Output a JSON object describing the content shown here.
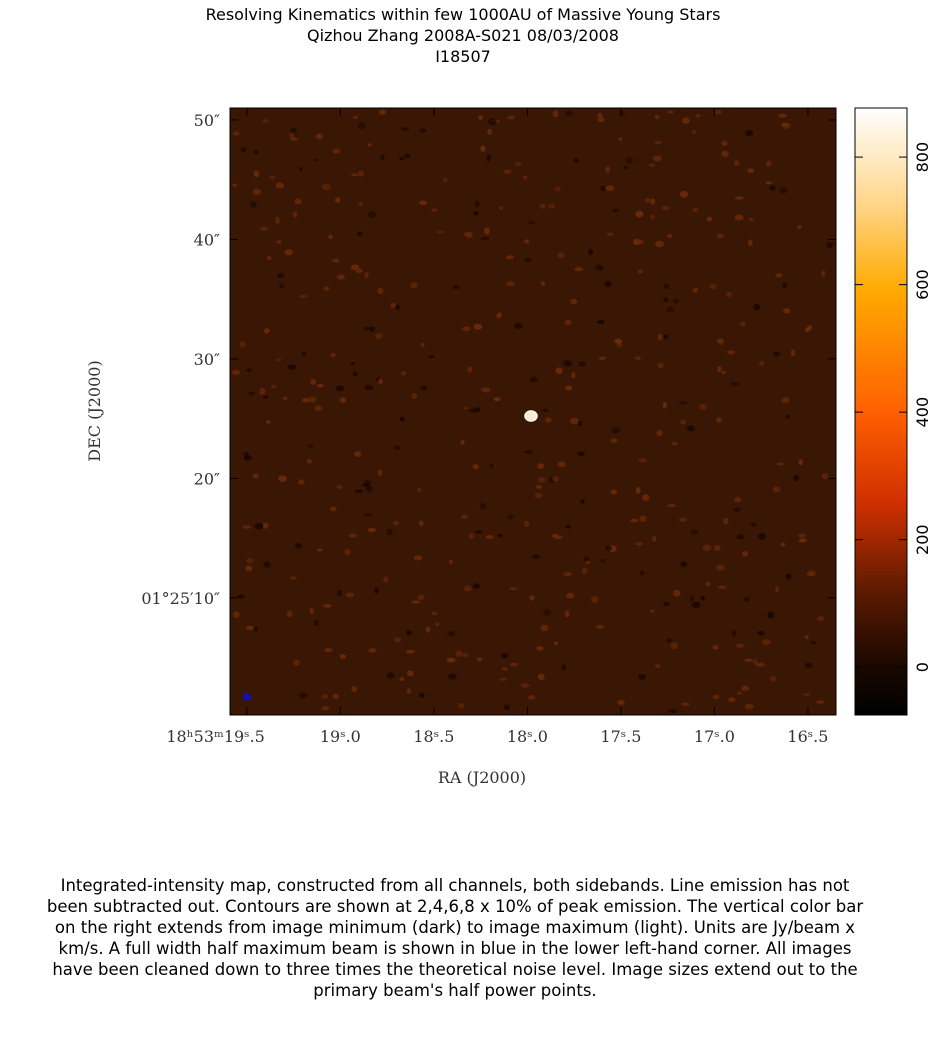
{
  "chart_data": {
    "type": "image",
    "title": [
      "Resolving Kinematics within few 1000AU of Massive Young Stars",
      "Qizhou Zhang   2008A-S021   08/03/2008",
      "I18507"
    ],
    "xlabel": "RA  (J2000)",
    "ylabel": "DEC  (J2000)",
    "xlim": [
      19.59,
      16.35
    ],
    "xticks": [
      {
        "value": 19.5,
        "label": "18ʰ53ᵐ19ˢ.5"
      },
      {
        "value": 19.0,
        "label": "19ˢ.0"
      },
      {
        "value": 18.5,
        "label": "18ˢ.5"
      },
      {
        "value": 18.0,
        "label": "18ˢ.0"
      },
      {
        "value": 17.5,
        "label": "17ˢ.5"
      },
      {
        "value": 17.0,
        "label": "17ˢ.0"
      },
      {
        "value": 16.5,
        "label": "16ˢ.5"
      }
    ],
    "ylim": [
      0.2,
      51.0
    ],
    "yticks": [
      {
        "value": 10,
        "label": "01°25′10″"
      },
      {
        "value": 20,
        "label": "20″"
      },
      {
        "value": 30,
        "label": "30″"
      },
      {
        "value": 40,
        "label": "40″"
      },
      {
        "value": 50,
        "label": "50″"
      }
    ],
    "colorbar": {
      "clim": [
        -75,
        877
      ],
      "ticks": [
        0,
        200,
        400,
        600,
        800
      ]
    },
    "caption": "Integrated-intensity map, constructed from all channels, both sidebands.  Line emission has not been subtracted out.  Contours are shown at 2,4,6,8 x 10% of peak emission.  The vertical color bar on the right extends from image minimum (dark) to image maximum (light).  Units are Jy/beam x km/s.  A full width half maximum beam is shown in blue in the lower left-hand corner.  All images have been cleaned down to three times the theoretical noise level.  Image sizes extend out to the primary beam's half power points."
  }
}
